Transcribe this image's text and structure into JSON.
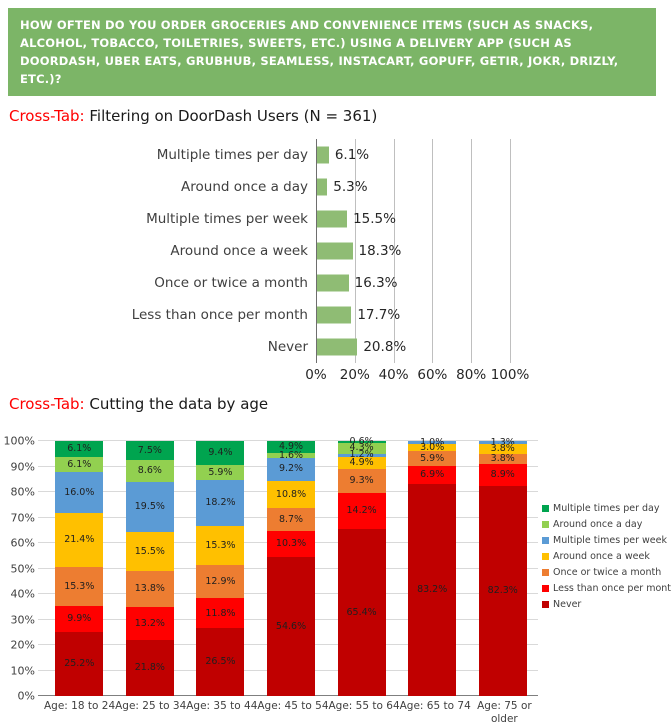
{
  "header": {
    "question": "HOW OFTEN DO YOU ORDER GROCERIES AND CONVENIENCE ITEMS (SUCH AS SNACKS, ALCOHOL, TOBACCO, TOILETRIES, SWEETS, ETC.) USING A DELIVERY APP (SUCH AS DOORDASH, UBER EATS, GRUBHUB, SEAMLESS, INSTACART, GOPUFF, GETIR, JOKR, DRIZLY, ETC.)?",
    "bg_color": "#7CB567",
    "text_color": "#FFFFFF"
  },
  "section1": {
    "label": "Cross-Tab:",
    "title": "Filtering on DoorDash Users (N = 361)",
    "label_color": "#FF0000"
  },
  "section2": {
    "label": "Cross-Tab:",
    "title": "Cutting the data by age",
    "label_color": "#FF0000"
  },
  "chart_data": [
    {
      "type": "bar",
      "orientation": "horizontal",
      "title": "",
      "categories": [
        "Multiple times per day",
        "Around once a day",
        "Multiple times per week",
        "Around once a week",
        "Once or twice a month",
        "Less than once per month",
        "Never"
      ],
      "values": [
        6.1,
        5.3,
        15.5,
        18.3,
        16.3,
        17.7,
        20.8
      ],
      "labels": [
        "6.1%",
        "5.3%",
        "15.5%",
        "18.3%",
        "16.3%",
        "17.7%",
        "20.8%"
      ],
      "x_ticks": [
        "0%",
        "20%",
        "40%",
        "60%",
        "80%",
        "100%"
      ],
      "xlim": [
        0,
        100
      ],
      "bar_color": "#8FBC74",
      "grid": true,
      "legend_position": "none"
    },
    {
      "type": "bar",
      "subtype": "stacked-100-percent-columns",
      "title": "",
      "categories": [
        "Age: 18 to 24",
        "Age: 25 to 34",
        "Age: 35 to 44",
        "Age: 45 to 54",
        "Age: 55 to 64",
        "Age: 65 to 74",
        "Age: 75 or older"
      ],
      "x_labels": [
        "Age: 18 to 24",
        "Age: 25 to 34",
        "Age: 35 to 44",
        "Age: 45 to 54",
        "Age: 55 to 64",
        "Age: 65 to 74",
        "Age: 75 or\nolder"
      ],
      "series": [
        {
          "name": "Never",
          "color": "#C00000",
          "values": [
            25.2,
            21.8,
            26.5,
            54.6,
            65.4,
            83.2,
            82.3
          ],
          "labels": [
            "25.2%",
            "21.8%",
            "26.5%",
            "54.6%",
            "65.4%",
            "83.2%",
            "82.3%"
          ]
        },
        {
          "name": "Less than once per month",
          "color": "#FF0000",
          "values": [
            9.9,
            13.2,
            11.8,
            10.3,
            14.2,
            6.9,
            8.9
          ],
          "labels": [
            "9.9%",
            "13.2%",
            "11.8%",
            "10.3%",
            "14.2%",
            "6.9%",
            "8.9%"
          ]
        },
        {
          "name": "Once or twice a month",
          "color": "#ED7D31",
          "values": [
            15.3,
            13.8,
            12.9,
            8.7,
            9.3,
            5.9,
            3.8
          ],
          "labels": [
            "15.3%",
            "13.8%",
            "12.9%",
            "8.7%",
            "9.3%",
            "5.9%",
            "3.8%"
          ]
        },
        {
          "name": "Around once a week",
          "color": "#FFC000",
          "values": [
            21.4,
            15.5,
            15.3,
            10.8,
            4.9,
            3.0,
            3.8
          ],
          "labels": [
            "21.4%",
            "15.5%",
            "15.3%",
            "10.8%",
            "4.9%",
            "3.0%",
            "3.8%"
          ]
        },
        {
          "name": "Multiple times per week",
          "color": "#5B9BD5",
          "values": [
            16.0,
            19.5,
            18.2,
            9.2,
            1.2,
            1.0,
            1.3
          ],
          "labels": [
            "16.0%",
            "19.5%",
            "18.2%",
            "9.2%",
            "1.2%",
            "1.0%",
            "1.3%"
          ]
        },
        {
          "name": "Around once a day",
          "color": "#92D050",
          "values": [
            6.1,
            8.6,
            5.9,
            1.6,
            4.3,
            0,
            0
          ],
          "labels": [
            "6.1%",
            "8.6%",
            "5.9%",
            "1.6%",
            "4.3%",
            "",
            ""
          ]
        },
        {
          "name": "Multiple times per day",
          "color": "#00A44F",
          "values": [
            6.1,
            7.5,
            9.4,
            4.9,
            0.6,
            0,
            0
          ],
          "labels": [
            "6.1%",
            "7.5%",
            "9.4%",
            "4.9%",
            "0.6%",
            "",
            ""
          ]
        }
      ],
      "stack_order": "bottom-to-top",
      "y_ticks": [
        "0%",
        "10%",
        "20%",
        "30%",
        "40%",
        "50%",
        "60%",
        "70%",
        "80%",
        "90%",
        "100%"
      ],
      "ylim": [
        0,
        100
      ],
      "grid": true,
      "legend_position": "right",
      "legend": [
        "Multiple times per day",
        "Around once a day",
        "Multiple times per week",
        "Around once a week",
        "Once or twice a month",
        "Less than once per month",
        "Never"
      ]
    }
  ]
}
